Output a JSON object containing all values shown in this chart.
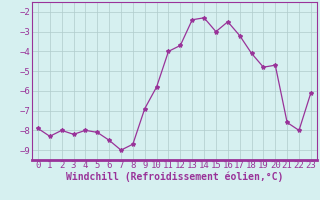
{
  "x": [
    0,
    1,
    2,
    3,
    4,
    5,
    6,
    7,
    8,
    9,
    10,
    11,
    12,
    13,
    14,
    15,
    16,
    17,
    18,
    19,
    20,
    21,
    22,
    23
  ],
  "y": [
    -7.9,
    -8.3,
    -8.0,
    -8.2,
    -8.0,
    -8.1,
    -8.5,
    -9.0,
    -8.7,
    -6.9,
    -5.8,
    -4.0,
    -3.7,
    -2.4,
    -2.3,
    -3.0,
    -2.5,
    -3.2,
    -4.1,
    -4.8,
    -4.7,
    -7.6,
    -8.0,
    -6.1
  ],
  "line_color": "#993399",
  "marker": "*",
  "marker_size": 3,
  "bg_color": "#d6f0f0",
  "grid_color": "#b0cccc",
  "xlabel": "Windchill (Refroidissement éolien,°C)",
  "xlabel_fontsize": 7,
  "tick_fontsize": 6.5,
  "ylim": [
    -9.5,
    -1.5
  ],
  "yticks": [
    -9,
    -8,
    -7,
    -6,
    -5,
    -4,
    -3,
    -2
  ],
  "xlim": [
    -0.5,
    23.5
  ],
  "xticks": [
    0,
    1,
    2,
    3,
    4,
    5,
    6,
    7,
    8,
    9,
    10,
    11,
    12,
    13,
    14,
    15,
    16,
    17,
    18,
    19,
    20,
    21,
    22,
    23
  ],
  "label_color": "#993399",
  "spine_color": "#993399"
}
